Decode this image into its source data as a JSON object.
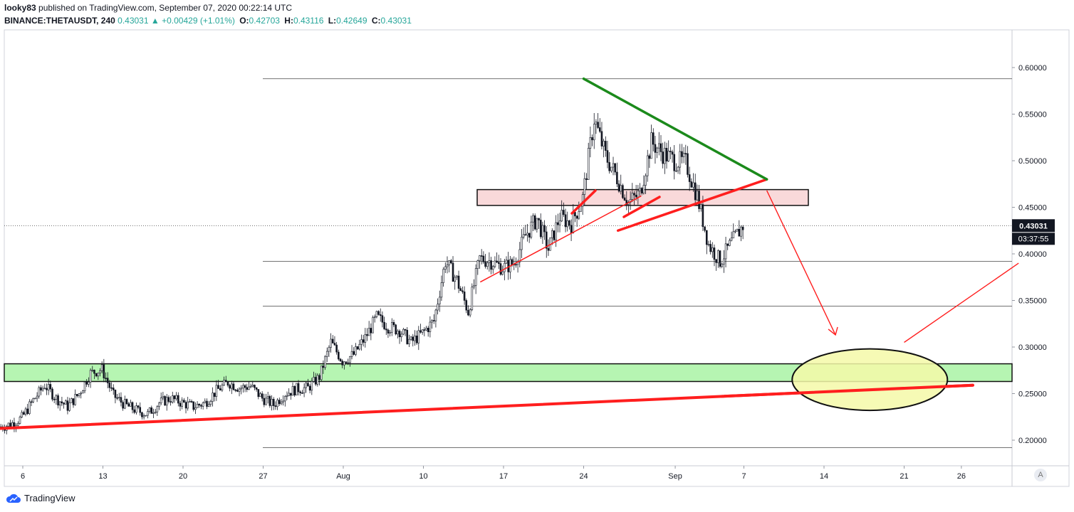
{
  "header": {
    "author": "looky83",
    "published_text": "published on TradingView.com, September 07, 2020 00:22:14 UTC",
    "symbol": "BINANCE:THETAUSDT, 240",
    "last": "0.43031",
    "change": "+0.00429 (+1.01%)",
    "open_label": "O:",
    "open": "0.42703",
    "high_label": "H:",
    "high": "0.43116",
    "low_label": "L:",
    "low": "0.42649",
    "close_label": "C:",
    "close": "0.43031"
  },
  "price_label": "0.43031",
  "countdown_label": "03:37:55",
  "footer": {
    "brand": "TradingView",
    "scale_button": "A"
  },
  "colors": {
    "up": "#26a69a",
    "candle": "#131722",
    "trend_red": "#ff1e1e",
    "trend_green": "#1b8a1b",
    "support_zone": "#b6f5b2",
    "resistance_zone": "#f9d9da",
    "target_ellipse": "#f4f9a8"
  },
  "chart_data": {
    "type": "candlestick",
    "x_tick_labels": [
      "6",
      "13",
      "20",
      "27",
      "Aug",
      "10",
      "17",
      "24",
      "Sep",
      "7",
      "14",
      "21",
      "26"
    ],
    "y_tick_labels": [
      "0.60000",
      "0.55000",
      "0.50000",
      "0.45000",
      "0.40000",
      "0.35000",
      "0.30000",
      "0.25000",
      "0.20000"
    ],
    "y_ticks": [
      0.6,
      0.55,
      0.5,
      0.45,
      0.4,
      0.35,
      0.3,
      0.25,
      0.2
    ],
    "ylim": [
      0.165,
      0.645
    ],
    "x_range_days": [
      "2020-07-03",
      "2020-09-30"
    ],
    "last_price": 0.43031,
    "price_series_daily_close": [
      [
        "2020-07-04",
        0.214
      ],
      [
        "2020-07-05",
        0.217
      ],
      [
        "2020-07-06",
        0.224
      ],
      [
        "2020-07-07",
        0.243
      ],
      [
        "2020-07-08",
        0.259
      ],
      [
        "2020-07-09",
        0.245
      ],
      [
        "2020-07-10",
        0.236
      ],
      [
        "2020-07-11",
        0.25
      ],
      [
        "2020-07-12",
        0.272
      ],
      [
        "2020-07-13",
        0.276
      ],
      [
        "2020-07-14",
        0.248
      ],
      [
        "2020-07-15",
        0.238
      ],
      [
        "2020-07-16",
        0.232
      ],
      [
        "2020-07-17",
        0.228
      ],
      [
        "2020-07-18",
        0.24
      ],
      [
        "2020-07-19",
        0.245
      ],
      [
        "2020-07-20",
        0.24
      ],
      [
        "2020-07-21",
        0.236
      ],
      [
        "2020-07-22",
        0.24
      ],
      [
        "2020-07-23",
        0.253
      ],
      [
        "2020-07-24",
        0.262
      ],
      [
        "2020-07-25",
        0.256
      ],
      [
        "2020-07-26",
        0.258
      ],
      [
        "2020-07-27",
        0.245
      ],
      [
        "2020-07-28",
        0.238
      ],
      [
        "2020-07-29",
        0.25
      ],
      [
        "2020-07-30",
        0.255
      ],
      [
        "2020-07-31",
        0.256
      ],
      [
        "2020-08-01",
        0.268
      ],
      [
        "2020-08-02",
        0.305
      ],
      [
        "2020-08-03",
        0.285
      ],
      [
        "2020-08-04",
        0.292
      ],
      [
        "2020-08-05",
        0.31
      ],
      [
        "2020-08-06",
        0.332
      ],
      [
        "2020-08-07",
        0.322
      ],
      [
        "2020-08-08",
        0.318
      ],
      [
        "2020-08-09",
        0.305
      ],
      [
        "2020-08-10",
        0.315
      ],
      [
        "2020-08-11",
        0.328
      ],
      [
        "2020-08-12",
        0.392
      ],
      [
        "2020-08-13",
        0.372
      ],
      [
        "2020-08-14",
        0.338
      ],
      [
        "2020-08-15",
        0.395
      ],
      [
        "2020-08-16",
        0.392
      ],
      [
        "2020-08-17",
        0.385
      ],
      [
        "2020-08-18",
        0.39
      ],
      [
        "2020-08-19",
        0.42
      ],
      [
        "2020-08-20",
        0.438
      ],
      [
        "2020-08-21",
        0.405
      ],
      [
        "2020-08-22",
        0.44
      ],
      [
        "2020-08-23",
        0.432
      ],
      [
        "2020-08-24",
        0.46
      ],
      [
        "2020-08-25",
        0.545
      ],
      [
        "2020-08-26",
        0.505
      ],
      [
        "2020-08-27",
        0.482
      ],
      [
        "2020-08-28",
        0.455
      ],
      [
        "2020-08-29",
        0.465
      ],
      [
        "2020-08-30",
        0.52
      ],
      [
        "2020-08-31",
        0.508
      ],
      [
        "2020-09-01",
        0.5
      ],
      [
        "2020-09-02",
        0.498
      ],
      [
        "2020-09-03",
        0.462
      ],
      [
        "2020-09-04",
        0.41
      ],
      [
        "2020-09-05",
        0.392
      ],
      [
        "2020-09-06",
        0.412
      ],
      [
        "2020-09-07",
        0.43031
      ]
    ],
    "horizontal_levels": [
      0.588,
      0.392,
      0.344,
      0.192
    ],
    "zones": [
      {
        "name": "support",
        "from": 0.263,
        "to": 0.282
      },
      {
        "name": "resistance",
        "from": 0.452,
        "to": 0.469
      }
    ],
    "trendlines": [
      {
        "name": "long-term-support",
        "from": [
          "2020-07-03",
          0.212
        ],
        "to": [
          "2020-09-27",
          0.259
        ]
      },
      {
        "name": "mid-support",
        "from": [
          "2020-08-15",
          0.37
        ],
        "to": [
          "2020-08-29",
          0.462
        ]
      },
      {
        "name": "wedge-lower",
        "from": [
          "2020-08-27",
          0.425
        ],
        "to": [
          "2020-09-09",
          0.48
        ]
      },
      {
        "name": "wedge-upper",
        "from": [
          "2020-08-24",
          0.588
        ],
        "to": [
          "2020-09-09",
          0.48
        ]
      }
    ],
    "projection_arrows": [
      {
        "from": [
          "2020-09-09",
          0.468
        ],
        "to": [
          "2020-09-15",
          0.313
        ]
      },
      {
        "from": [
          "2020-09-21",
          0.305
        ],
        "to": [
          "2020-10-01",
          0.39
        ]
      }
    ],
    "target_ellipse": {
      "center": [
        "2020-09-18",
        0.265
      ],
      "x_extent_days": 13.5,
      "y_extent": 0.033
    }
  }
}
